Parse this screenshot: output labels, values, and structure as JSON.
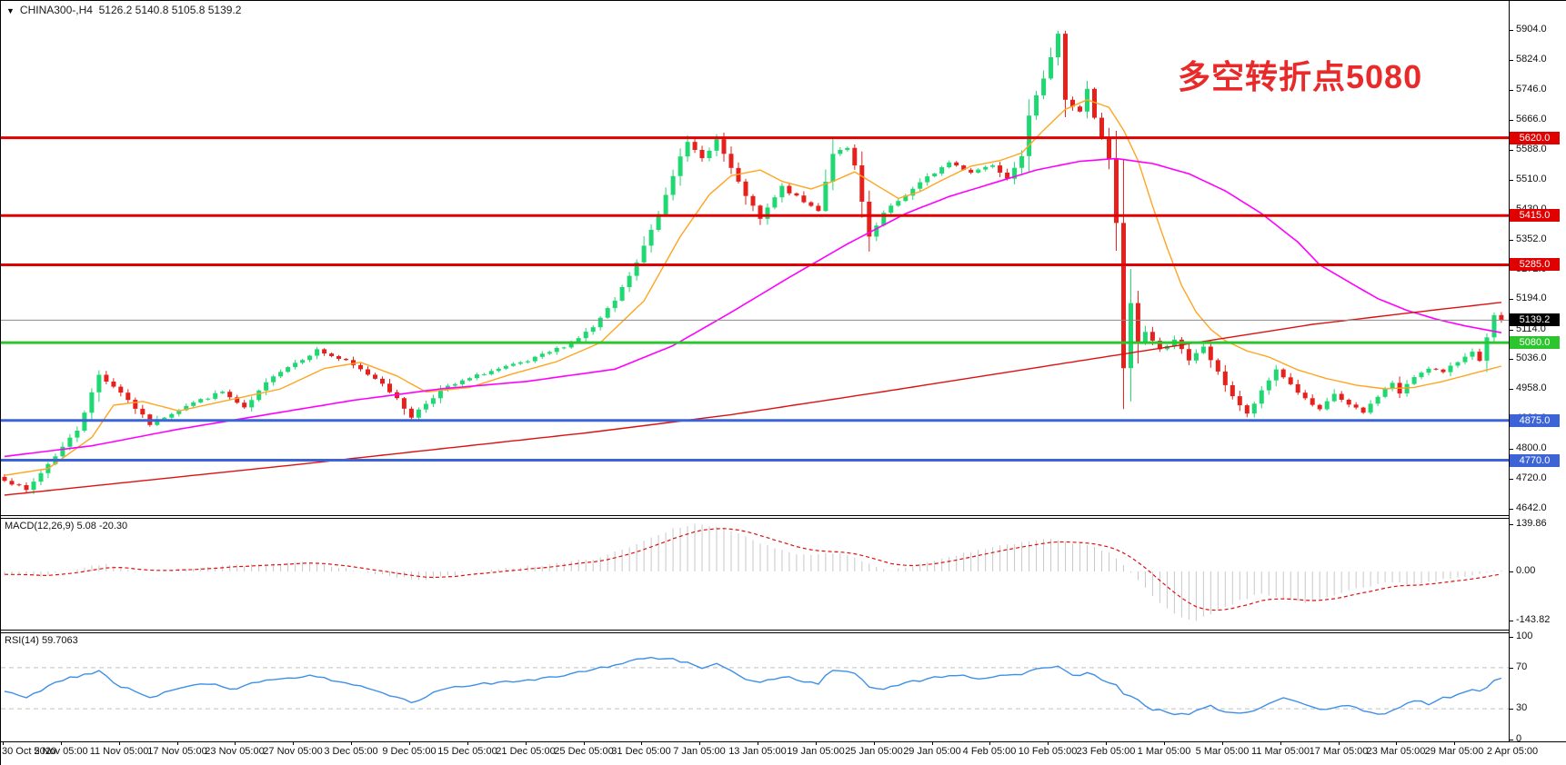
{
  "title": {
    "symbol": "CHINA300-,H4",
    "ohlc": "5126.2 5140.8 5105.8 5139.2",
    "dropdown_glyph": "▼"
  },
  "annotation": {
    "text": "多空转折点5080",
    "color": "#e92a2a"
  },
  "colors": {
    "candle_up": "#1fd872",
    "candle_down": "#e5211d",
    "ma_orange": "#ffa520",
    "ma_magenta": "#ff00ff",
    "ma_red": "#dd1111",
    "price_line": "#8a8a8a",
    "macd_hist": "#c8c8c8",
    "macd_signal": "#e01010",
    "rsi_line": "#3e8fe8",
    "rsi_level": "#c0c0c0",
    "axis_text": "#111111"
  },
  "chart_data": {
    "type": "candlestick",
    "symbol": "CHINA300-",
    "timeframe": "H4",
    "current_bar": {
      "open": 5126.2,
      "high": 5140.8,
      "low": 5105.8,
      "close": 5139.2
    },
    "ylim": [
      4642,
      5904
    ],
    "y_ticks": [
      5904,
      5824,
      5746,
      5666,
      5588,
      5510,
      5430,
      5352,
      5272,
      5194,
      5114,
      5036,
      4958,
      4880,
      4800,
      4720,
      4642
    ],
    "x_labels": [
      "30 Oct 2020",
      "5 Nov 05:00",
      "11 Nov 05:00",
      "17 Nov 05:00",
      "23 Nov 05:00",
      "27 Nov 05:00",
      "3 Dec 05:00",
      "9 Dec 05:00",
      "15 Dec 05:00",
      "21 Dec 05:00",
      "25 Dec 05:00",
      "31 Dec 05:00",
      "7 Jan 05:00",
      "13 Jan 05:00",
      "19 Jan 05:00",
      "25 Jan 05:00",
      "29 Jan 05:00",
      "4 Feb 05:00",
      "10 Feb 05:00",
      "23 Feb 05:00",
      "1 Mar 05:00",
      "5 Mar 05:00",
      "11 Mar 05:00",
      "17 Mar 05:00",
      "23 Mar 05:00",
      "29 Mar 05:00",
      "2 Apr 05:00"
    ],
    "n_candles": 207,
    "close_anchors": [
      [
        0,
        4720
      ],
      [
        3,
        4690
      ],
      [
        6,
        4760
      ],
      [
        10,
        4850
      ],
      [
        13,
        4995
      ],
      [
        16,
        4950
      ],
      [
        20,
        4865
      ],
      [
        25,
        4915
      ],
      [
        30,
        4950
      ],
      [
        33,
        4905
      ],
      [
        37,
        4995
      ],
      [
        43,
        5060
      ],
      [
        47,
        5030
      ],
      [
        52,
        4975
      ],
      [
        56,
        4885
      ],
      [
        60,
        4955
      ],
      [
        66,
        5000
      ],
      [
        72,
        5030
      ],
      [
        78,
        5080
      ],
      [
        81,
        5120
      ],
      [
        84,
        5190
      ],
      [
        87,
        5290
      ],
      [
        90,
        5420
      ],
      [
        93,
        5575
      ],
      [
        94,
        5605
      ],
      [
        96,
        5565
      ],
      [
        98,
        5615
      ],
      [
        101,
        5500
      ],
      [
        104,
        5405
      ],
      [
        107,
        5490
      ],
      [
        110,
        5450
      ],
      [
        112,
        5430
      ],
      [
        114,
        5580
      ],
      [
        116,
        5590
      ],
      [
        117,
        5545
      ],
      [
        119,
        5355
      ],
      [
        121,
        5420
      ],
      [
        124,
        5470
      ],
      [
        127,
        5515
      ],
      [
        130,
        5555
      ],
      [
        133,
        5530
      ],
      [
        136,
        5550
      ],
      [
        138,
        5515
      ],
      [
        140,
        5575
      ],
      [
        141,
        5675
      ],
      [
        143,
        5780
      ],
      [
        144,
        5835
      ],
      [
        145,
        5895
      ],
      [
        146,
        5720
      ],
      [
        147,
        5700
      ],
      [
        148,
        5690
      ],
      [
        149,
        5750
      ],
      [
        150,
        5670
      ],
      [
        151,
        5620
      ],
      [
        152,
        5560
      ],
      [
        153,
        5395
      ],
      [
        154,
        5010
      ],
      [
        155,
        5185
      ],
      [
        156,
        5080
      ],
      [
        157,
        5110
      ],
      [
        159,
        5060
      ],
      [
        161,
        5090
      ],
      [
        163,
        5030
      ],
      [
        165,
        5070
      ],
      [
        167,
        5000
      ],
      [
        169,
        4940
      ],
      [
        171,
        4890
      ],
      [
        173,
        4950
      ],
      [
        175,
        5010
      ],
      [
        177,
        4970
      ],
      [
        179,
        4930
      ],
      [
        181,
        4900
      ],
      [
        183,
        4945
      ],
      [
        185,
        4915
      ],
      [
        187,
        4895
      ],
      [
        189,
        4940
      ],
      [
        191,
        4975
      ],
      [
        192,
        4945
      ],
      [
        194,
        4990
      ],
      [
        196,
        5015
      ],
      [
        198,
        5000
      ],
      [
        200,
        5030
      ],
      [
        202,
        5060
      ],
      [
        203,
        5030
      ],
      [
        204,
        5090
      ],
      [
        205,
        5150
      ],
      [
        206,
        5139.2
      ]
    ],
    "ma_anchors": {
      "orange": [
        [
          0,
          4730
        ],
        [
          6,
          4748
        ],
        [
          12,
          4830
        ],
        [
          15,
          4915
        ],
        [
          19,
          4925
        ],
        [
          24,
          4900
        ],
        [
          30,
          4925
        ],
        [
          38,
          4958
        ],
        [
          44,
          5012
        ],
        [
          49,
          5028
        ],
        [
          54,
          4992
        ],
        [
          58,
          4950
        ],
        [
          64,
          4962
        ],
        [
          70,
          4998
        ],
        [
          76,
          5030
        ],
        [
          82,
          5080
        ],
        [
          88,
          5190
        ],
        [
          93,
          5360
        ],
        [
          97,
          5470
        ],
        [
          100,
          5520
        ],
        [
          104,
          5535
        ],
        [
          107,
          5505
        ],
        [
          111,
          5485
        ],
        [
          114,
          5505
        ],
        [
          117,
          5530
        ],
        [
          120,
          5495
        ],
        [
          123,
          5460
        ],
        [
          126,
          5478
        ],
        [
          129,
          5508
        ],
        [
          133,
          5545
        ],
        [
          137,
          5560
        ],
        [
          140,
          5580
        ],
        [
          143,
          5640
        ],
        [
          146,
          5695
        ],
        [
          149,
          5720
        ],
        [
          152,
          5700
        ],
        [
          154,
          5640
        ],
        [
          156,
          5560
        ],
        [
          158,
          5440
        ],
        [
          160,
          5330
        ],
        [
          162,
          5230
        ],
        [
          164,
          5160
        ],
        [
          166,
          5115
        ],
        [
          168,
          5085
        ],
        [
          171,
          5058
        ],
        [
          174,
          5042
        ],
        [
          178,
          5008
        ],
        [
          182,
          4985
        ],
        [
          186,
          4968
        ],
        [
          190,
          4958
        ],
        [
          194,
          4962
        ],
        [
          198,
          4978
        ],
        [
          202,
          4998
        ],
        [
          206,
          5018
        ]
      ],
      "magenta": [
        [
          0,
          4780
        ],
        [
          12,
          4808
        ],
        [
          24,
          4852
        ],
        [
          36,
          4890
        ],
        [
          48,
          4928
        ],
        [
          60,
          4958
        ],
        [
          72,
          4978
        ],
        [
          84,
          5010
        ],
        [
          92,
          5072
        ],
        [
          100,
          5160
        ],
        [
          108,
          5252
        ],
        [
          116,
          5340
        ],
        [
          124,
          5420
        ],
        [
          130,
          5465
        ],
        [
          136,
          5500
        ],
        [
          142,
          5535
        ],
        [
          148,
          5558
        ],
        [
          153,
          5565
        ],
        [
          158,
          5552
        ],
        [
          163,
          5525
        ],
        [
          168,
          5480
        ],
        [
          173,
          5420
        ],
        [
          178,
          5345
        ],
        [
          181,
          5285
        ],
        [
          185,
          5240
        ],
        [
          189,
          5196
        ],
        [
          193,
          5165
        ],
        [
          197,
          5142
        ],
        [
          201,
          5124
        ],
        [
          206,
          5106
        ]
      ],
      "red": [
        [
          0,
          4678
        ],
        [
          20,
          4718
        ],
        [
          40,
          4758
        ],
        [
          60,
          4800
        ],
        [
          80,
          4842
        ],
        [
          100,
          4890
        ],
        [
          120,
          4948
        ],
        [
          140,
          5008
        ],
        [
          160,
          5068
        ],
        [
          180,
          5128
        ],
        [
          195,
          5162
        ],
        [
          206,
          5186
        ]
      ]
    },
    "hlines": [
      {
        "price": 5620.0,
        "label": "5620.0",
        "color": "#e00000",
        "width": 3
      },
      {
        "price": 5415.0,
        "label": "5415.0",
        "color": "#e00000",
        "width": 3
      },
      {
        "price": 5285.0,
        "label": "5285.0",
        "color": "#e00000",
        "width": 3
      },
      {
        "price": 5080.0,
        "label": "5080.0",
        "color": "#2dc52d",
        "width": 3
      },
      {
        "price": 4875.0,
        "label": "4875.0",
        "color": "#3c64d7",
        "width": 3
      },
      {
        "price": 4770.0,
        "label": "4770.0",
        "color": "#3c64d7",
        "width": 3
      }
    ],
    "price_marker": {
      "price": 5139.2,
      "label": "5139.2",
      "line_color": "#8a8a8a",
      "badge_color": "#000000"
    },
    "indicators": {
      "macd": {
        "label": "MACD(12,26,9)",
        "values": "5.08 -20.30",
        "axis_labels": [
          "139.86",
          "0.00",
          "-143.82"
        ],
        "axis_values": [
          139.86,
          0,
          -143.82
        ],
        "hist_anchors": [
          [
            0,
            -8
          ],
          [
            5,
            -15
          ],
          [
            10,
            6
          ],
          [
            14,
            25
          ],
          [
            18,
            -5
          ],
          [
            24,
            8
          ],
          [
            30,
            16
          ],
          [
            36,
            20
          ],
          [
            42,
            28
          ],
          [
            48,
            5
          ],
          [
            54,
            -18
          ],
          [
            58,
            -25
          ],
          [
            63,
            -5
          ],
          [
            69,
            10
          ],
          [
            75,
            20
          ],
          [
            81,
            38
          ],
          [
            85,
            62
          ],
          [
            89,
            98
          ],
          [
            92,
            126
          ],
          [
            95,
            140
          ],
          [
            98,
            133
          ],
          [
            101,
            110
          ],
          [
            104,
            82
          ],
          [
            107,
            62
          ],
          [
            110,
            48
          ],
          [
            113,
            56
          ],
          [
            116,
            50
          ],
          [
            119,
            22
          ],
          [
            122,
            4
          ],
          [
            125,
            16
          ],
          [
            129,
            38
          ],
          [
            133,
            58
          ],
          [
            137,
            74
          ],
          [
            141,
            88
          ],
          [
            144,
            94
          ],
          [
            147,
            85
          ],
          [
            150,
            70
          ],
          [
            152,
            55
          ],
          [
            154,
            20
          ],
          [
            156,
            -25
          ],
          [
            158,
            -75
          ],
          [
            160,
            -110
          ],
          [
            162,
            -135
          ],
          [
            164,
            -143
          ],
          [
            167,
            -115
          ],
          [
            170,
            -85
          ],
          [
            173,
            -65
          ],
          [
            176,
            -80
          ],
          [
            179,
            -92
          ],
          [
            182,
            -75
          ],
          [
            185,
            -55
          ],
          [
            188,
            -42
          ],
          [
            191,
            -30
          ],
          [
            194,
            -38
          ],
          [
            197,
            -28
          ],
          [
            200,
            -18
          ],
          [
            203,
            -8
          ],
          [
            206,
            5
          ]
        ]
      },
      "rsi": {
        "label": "RSI(14)",
        "value": "59.7063",
        "axis_labels": [
          "100",
          "70",
          "30",
          "0"
        ],
        "axis_values": [
          100,
          70,
          30,
          0
        ],
        "levels": [
          70,
          30
        ],
        "anchors": [
          [
            0,
            48
          ],
          [
            3,
            42
          ],
          [
            6,
            52
          ],
          [
            10,
            62
          ],
          [
            13,
            66
          ],
          [
            16,
            52
          ],
          [
            20,
            40
          ],
          [
            24,
            50
          ],
          [
            28,
            55
          ],
          [
            31,
            48
          ],
          [
            36,
            58
          ],
          [
            43,
            62
          ],
          [
            47,
            55
          ],
          [
            52,
            45
          ],
          [
            56,
            36
          ],
          [
            60,
            48
          ],
          [
            66,
            55
          ],
          [
            72,
            58
          ],
          [
            78,
            64
          ],
          [
            82,
            70
          ],
          [
            86,
            76
          ],
          [
            89,
            80
          ],
          [
            92,
            78
          ],
          [
            94,
            74
          ],
          [
            96,
            70
          ],
          [
            98,
            73
          ],
          [
            101,
            62
          ],
          [
            104,
            55
          ],
          [
            107,
            62
          ],
          [
            110,
            57
          ],
          [
            112,
            55
          ],
          [
            114,
            68
          ],
          [
            117,
            64
          ],
          [
            119,
            52
          ],
          [
            121,
            48
          ],
          [
            124,
            56
          ],
          [
            128,
            60
          ],
          [
            131,
            63
          ],
          [
            134,
            60
          ],
          [
            137,
            62
          ],
          [
            140,
            64
          ],
          [
            143,
            70
          ],
          [
            145,
            72
          ],
          [
            147,
            62
          ],
          [
            149,
            65
          ],
          [
            151,
            58
          ],
          [
            153,
            52
          ],
          [
            154,
            44
          ],
          [
            156,
            38
          ],
          [
            158,
            30
          ],
          [
            160,
            26
          ],
          [
            162,
            24
          ],
          [
            164,
            27
          ],
          [
            166,
            32
          ],
          [
            168,
            28
          ],
          [
            170,
            25
          ],
          [
            172,
            28
          ],
          [
            174,
            35
          ],
          [
            176,
            40
          ],
          [
            178,
            36
          ],
          [
            180,
            32
          ],
          [
            182,
            28
          ],
          [
            184,
            34
          ],
          [
            186,
            30
          ],
          [
            188,
            27
          ],
          [
            190,
            25
          ],
          [
            192,
            32
          ],
          [
            194,
            38
          ],
          [
            196,
            34
          ],
          [
            198,
            40
          ],
          [
            200,
            44
          ],
          [
            202,
            50
          ],
          [
            203,
            46
          ],
          [
            204,
            52
          ],
          [
            205,
            57
          ],
          [
            206,
            59.7
          ]
        ]
      }
    }
  }
}
